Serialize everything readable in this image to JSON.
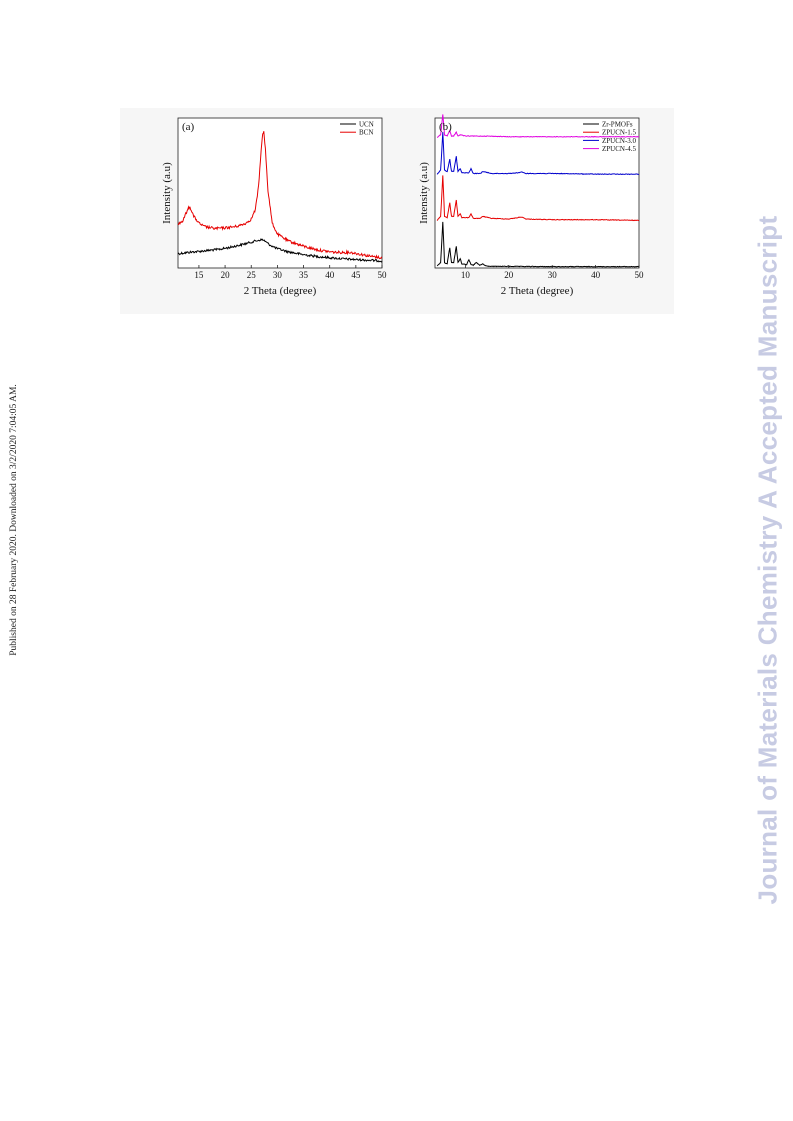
{
  "page": {
    "side_note": "Published on 28 February 2020. Downloaded on 3/2/2020 7:04:05 AM.",
    "watermark": "Journal of Materials Chemistry A Accepted Manuscript"
  },
  "chart_data": [
    {
      "type": "line",
      "panel_label": "(a)",
      "xlabel": "2 Theta (degree)",
      "ylabel": "Intensity (a.u)",
      "xlim": [
        11,
        50
      ],
      "xticks": [
        15,
        20,
        25,
        30,
        35,
        40,
        45,
        50
      ],
      "ylim": [
        0,
        100
      ],
      "y_tick_labels": false,
      "grid": false,
      "legend": "top-right",
      "series": [
        {
          "name": "UCN",
          "color": "#000000",
          "x": [
            11,
            13,
            15,
            17,
            19,
            21,
            23,
            24,
            25,
            26,
            26.5,
            27,
            27.5,
            28,
            29,
            30,
            32,
            35,
            38,
            41,
            44,
            47,
            50
          ],
          "y": [
            10.5,
            11.5,
            12.2,
            13,
            13.8,
            15.2,
            17,
            18,
            19,
            20,
            20.5,
            20.8,
            20.2,
            18.5,
            16,
            14.2,
            12,
            9.8,
            8.3,
            7.2,
            6.4,
            5.8,
            5.2
          ]
        },
        {
          "name": "BCN",
          "color": "#e60000",
          "x": [
            11,
            12,
            12.5,
            13,
            13.3,
            14,
            15,
            16,
            18,
            20,
            22,
            23,
            24,
            25,
            25.8,
            26.4,
            27,
            27.2,
            27.4,
            27.7,
            28.2,
            29,
            30,
            32,
            35,
            38,
            41,
            44,
            46,
            48,
            50
          ],
          "y": [
            32,
            35,
            40,
            44,
            45,
            38,
            33,
            30.5,
            29,
            29.5,
            30.5,
            31.5,
            33,
            36,
            43,
            60,
            92,
            98,
            100,
            88,
            57,
            33,
            25,
            20,
            16,
            13,
            11.5,
            11.5,
            10,
            8.5,
            7.5
          ]
        }
      ]
    },
    {
      "type": "line",
      "panel_label": "(b)",
      "xlabel": "2 Theta (degree)",
      "ylabel": "Intensity (a.u)",
      "xlim": [
        3,
        50
      ],
      "xticks": [
        10,
        20,
        30,
        40,
        50
      ],
      "ylim": [
        0,
        100
      ],
      "y_tick_labels": false,
      "grid": false,
      "legend": "top-right",
      "series": [
        {
          "name": "Zr-PMOFs",
          "color": "#000000",
          "x": [
            3.5,
            4.3,
            4.8,
            5.2,
            5.8,
            6.4,
            6.8,
            7.3,
            7.9,
            8.3,
            8.8,
            9.2,
            9.7,
            10.3,
            10.8,
            11.3,
            11.8,
            12.5,
            13.3,
            14,
            14.7,
            16,
            20,
            30,
            40,
            50
          ],
          "y": [
            1.5,
            4,
            34,
            4,
            3,
            15,
            4,
            4,
            16,
            4,
            7,
            3,
            3,
            2.5,
            6,
            2.5,
            2,
            4,
            2,
            3,
            1.5,
            1.2,
            1.2,
            1,
            1,
            1
          ]
        },
        {
          "name": "ZPUCN-1.5",
          "color": "#e60000",
          "x": [
            3.5,
            4.3,
            4.8,
            5.2,
            5.8,
            6.4,
            6.8,
            7.3,
            7.9,
            8.3,
            8.8,
            9.2,
            10.8,
            11.3,
            11.8,
            13.5,
            14,
            16,
            20,
            22,
            23,
            24,
            30,
            40,
            50
          ],
          "y": [
            35,
            38,
            68,
            38,
            37,
            48,
            38,
            38,
            50,
            38,
            40,
            37,
            37,
            40,
            36.5,
            36.5,
            38,
            36.5,
            36,
            37,
            37.5,
            36,
            35.5,
            35.5,
            35
          ]
        },
        {
          "name": "ZPUCN-3.0",
          "color": "#0000cc",
          "x": [
            3.5,
            4.3,
            4.8,
            5.2,
            5.8,
            6.4,
            6.8,
            7.3,
            7.9,
            8.3,
            8.8,
            9.2,
            10.8,
            11.3,
            11.8,
            13.5,
            14,
            16,
            20,
            22,
            23,
            24,
            30,
            40,
            50
          ],
          "y": [
            69,
            72,
            100,
            72,
            71,
            80,
            71,
            71,
            82,
            71,
            73,
            70,
            70,
            73,
            69.5,
            69.5,
            71,
            69.5,
            69.5,
            70,
            70.5,
            69.5,
            69.5,
            69,
            69
          ]
        },
        {
          "name": "ZPUCN-4.5",
          "color": "#e000e0",
          "x": [
            3.5,
            4.3,
            4.8,
            5.2,
            5.8,
            6.4,
            6.8,
            7.3,
            7.9,
            8.3,
            8.8,
            10,
            15,
            20,
            30,
            40,
            50
          ],
          "y": [
            96,
            98,
            113,
            98,
            97,
            101,
            97,
            97,
            100,
            97,
            98,
            97,
            97,
            96.5,
            96.5,
            96.5,
            96.5
          ]
        }
      ]
    }
  ]
}
